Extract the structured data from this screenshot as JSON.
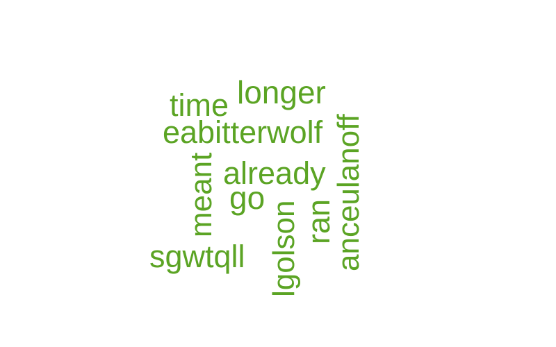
{
  "cloud": {
    "color": "#5ba424",
    "words": {
      "longer": "longer",
      "time": "time",
      "eabitterwolf": "eabitterwolf",
      "already": "already",
      "go": "go",
      "meant": "meant",
      "sgwtqll": "sgwtqll",
      "lgolson": "lgolson",
      "ran": "ran",
      "anceulanoff": "anceulanoff"
    }
  }
}
